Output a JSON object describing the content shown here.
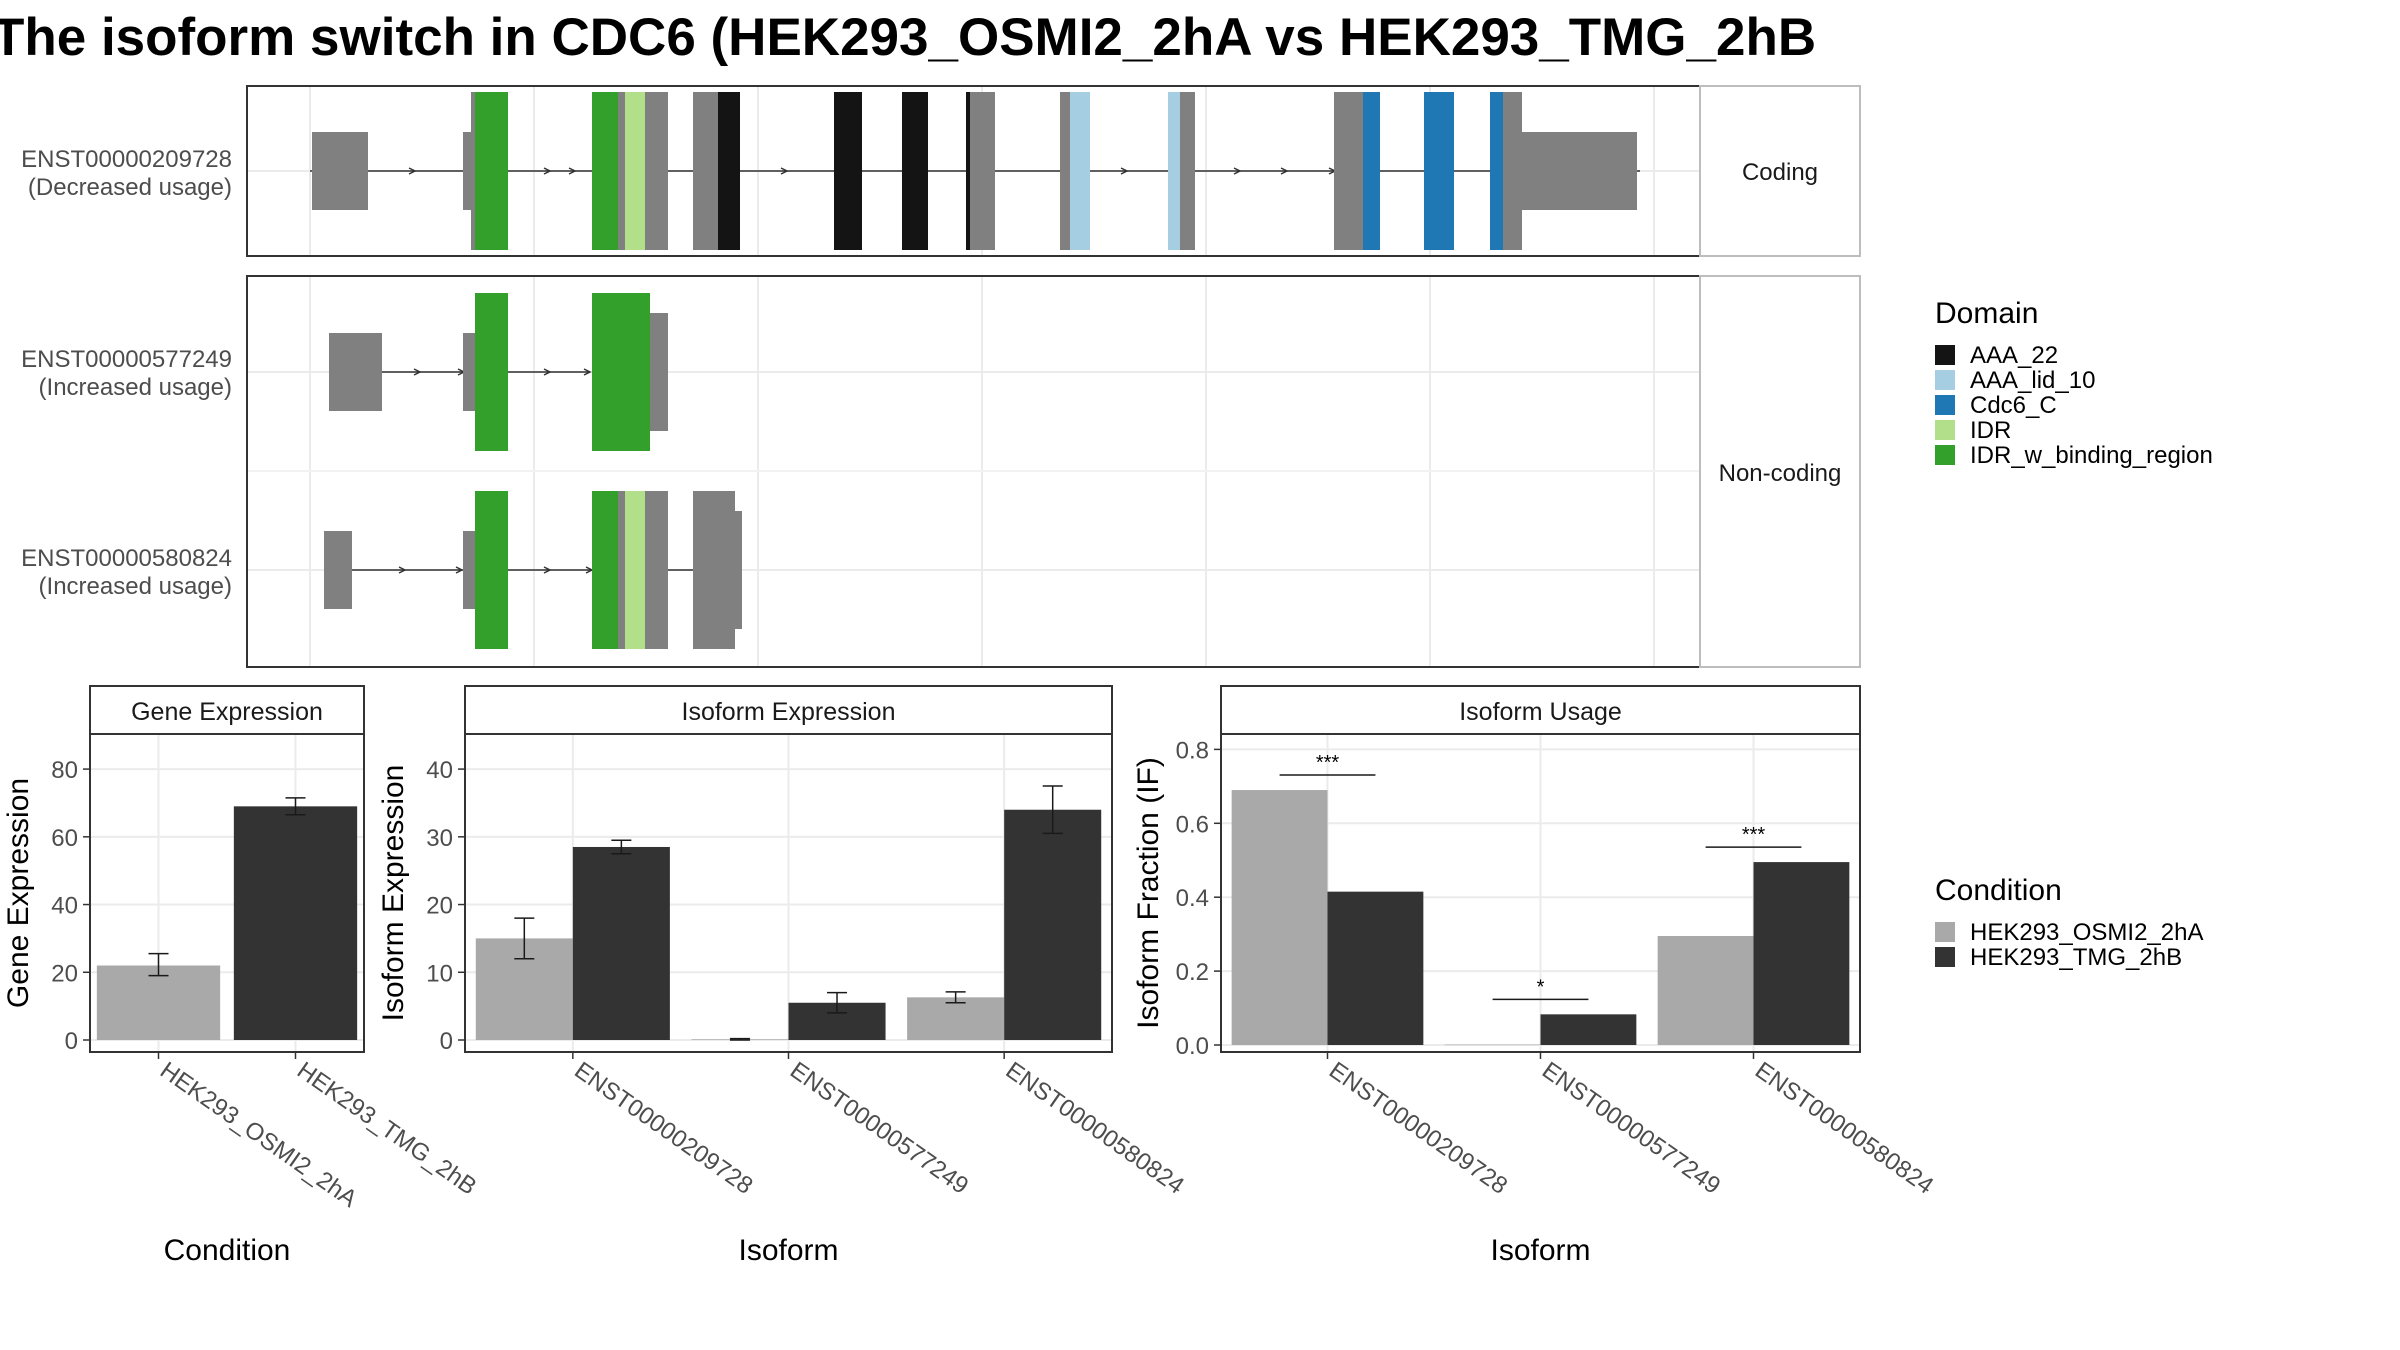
{
  "title": "The isoform switch in CDC6 (HEK293_OSMI2_2hA vs HEK293_TMG_2hB",
  "colors": {
    "AAA_22": "#141414",
    "AAA_lid_10": "#a6cee3",
    "Cdc6_C": "#1f78b4",
    "IDR": "#b2df8a",
    "IDR_w_binding_region": "#33a02c",
    "exon": "#808080",
    "cond_a": "#a9a9a9",
    "cond_b": "#333333"
  },
  "structure": {
    "facets": [
      "Coding",
      "Non-coding"
    ],
    "transcripts": [
      {
        "id": "ENST00000209728",
        "usage": "(Decreased usage)",
        "facet": "Coding"
      },
      {
        "id": "ENST00000577249",
        "usage": "(Increased usage)",
        "facet": "Non-coding"
      },
      {
        "id": "ENST00000580824",
        "usage": "(Increased usage)",
        "facet": "Non-coding"
      }
    ]
  },
  "legend_domain": {
    "title": "Domain",
    "items": [
      "AAA_22",
      "AAA_lid_10",
      "Cdc6_C",
      "IDR",
      "IDR_w_binding_region"
    ]
  },
  "legend_condition": {
    "title": "Condition",
    "items": [
      "HEK293_OSMI2_2hA",
      "HEK293_TMG_2hB"
    ]
  },
  "chart_data": [
    {
      "type": "bar",
      "title": "Gene Expression",
      "xlabel": "Condition",
      "ylabel": "Gene Expression",
      "categories": [
        "HEK293_OSMI2_2hA",
        "HEK293_TMG_2hB"
      ],
      "values": [
        22,
        69
      ],
      "errors": [
        [
          19,
          25.5
        ],
        [
          66.5,
          71.5
        ]
      ],
      "ylim": [
        0,
        88
      ],
      "yticks": [
        0,
        20,
        40,
        60,
        80
      ]
    },
    {
      "type": "bar",
      "title": "Isoform Expression",
      "xlabel": "Isoform",
      "ylabel": "Isoform Expression",
      "categories": [
        "ENST00000209728",
        "ENST00000577249",
        "ENST00000580824"
      ],
      "series": [
        {
          "name": "HEK293_OSMI2_2hA",
          "values": [
            15,
            0.1,
            6.3
          ],
          "errors": [
            [
              12,
              18
            ],
            [
              0,
              0.2
            ],
            [
              5.5,
              7.1
            ]
          ]
        },
        {
          "name": "HEK293_TMG_2hB",
          "values": [
            28.5,
            5.5,
            34
          ],
          "errors": [
            [
              27.5,
              29.5
            ],
            [
              4,
              7
            ],
            [
              30.5,
              37.5
            ]
          ]
        }
      ],
      "ylim": [
        0,
        44
      ],
      "yticks": [
        0,
        10,
        20,
        30,
        40
      ]
    },
    {
      "type": "bar",
      "title": "Isoform Usage",
      "xlabel": "Isoform",
      "ylabel": "Isoform Fraction (IF)",
      "categories": [
        "ENST00000209728",
        "ENST00000577249",
        "ENST00000580824"
      ],
      "series": [
        {
          "name": "HEK293_OSMI2_2hA",
          "values": [
            0.69,
            0.001,
            0.295
          ]
        },
        {
          "name": "HEK293_TMG_2hB",
          "values": [
            0.415,
            0.083,
            0.495
          ]
        }
      ],
      "significance": [
        "***",
        "*",
        "***"
      ],
      "ylim": [
        0,
        0.82
      ],
      "yticks": [
        0,
        0.2,
        0.4,
        0.6,
        0.8
      ],
      "ytick_labels": [
        "0.0",
        "0.2",
        "0.4",
        "0.6",
        "0.8"
      ]
    }
  ]
}
